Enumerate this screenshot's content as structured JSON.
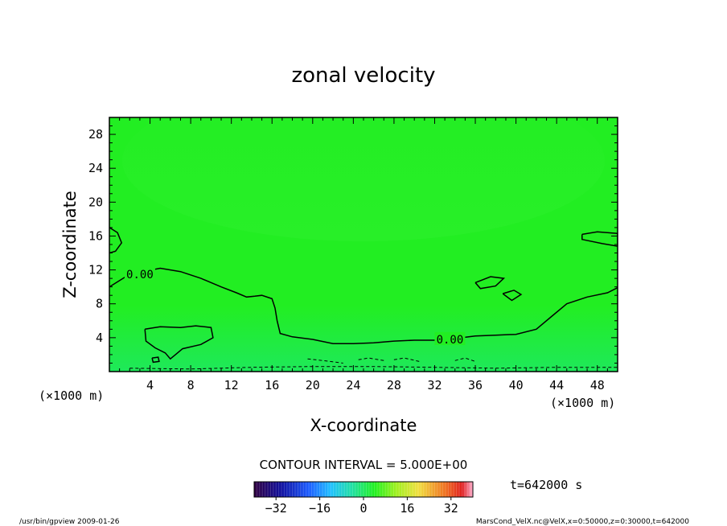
{
  "chart_data": {
    "type": "heatmap",
    "title": "zonal velocity",
    "xlabel": "X-coordinate",
    "ylabel": "Z-coordinate",
    "xunit_left": "(×1000 m)",
    "xunit_right": "(×1000 m)",
    "xlim": [
      0,
      50
    ],
    "ylim": [
      0,
      30
    ],
    "x_ticks": [
      4,
      8,
      12,
      16,
      20,
      24,
      28,
      32,
      36,
      40,
      44,
      48
    ],
    "y_ticks": [
      4,
      8,
      12,
      16,
      20,
      24,
      28
    ],
    "contour_interval": "CONTOUR INTERVAL = 5.000E+00",
    "contour_labels": [
      {
        "text": "0.00",
        "x": 3.0,
        "y": 11.5
      },
      {
        "text": "0.00",
        "x": 33.5,
        "y": 3.8
      }
    ],
    "zero_contour_main": [
      [
        0,
        10.0
      ],
      [
        2,
        11.5
      ],
      [
        5,
        12.2
      ],
      [
        7,
        11.8
      ],
      [
        9,
        11.0
      ],
      [
        11,
        10.0
      ],
      [
        12.5,
        9.3
      ],
      [
        13.5,
        8.8
      ],
      [
        14.3,
        8.9
      ],
      [
        15,
        9.0
      ],
      [
        16,
        8.6
      ],
      [
        16.3,
        7.5
      ],
      [
        16.5,
        6.0
      ],
      [
        16.8,
        4.5
      ],
      [
        18,
        4.1
      ],
      [
        20,
        3.8
      ],
      [
        22,
        3.3
      ],
      [
        24,
        3.3
      ],
      [
        26,
        3.4
      ],
      [
        28,
        3.6
      ],
      [
        30,
        3.7
      ],
      [
        32,
        3.7
      ],
      [
        34,
        3.9
      ],
      [
        36,
        4.2
      ],
      [
        38,
        4.3
      ],
      [
        40,
        4.4
      ],
      [
        42,
        5.0
      ],
      [
        43.5,
        6.5
      ],
      [
        45,
        8.0
      ],
      [
        47,
        8.8
      ],
      [
        49,
        9.3
      ],
      [
        50,
        9.9
      ]
    ],
    "zero_contours_closed": [
      [
        [
          3.5,
          5.0
        ],
        [
          5,
          5.3
        ],
        [
          7,
          5.2
        ],
        [
          8.5,
          5.4
        ],
        [
          10,
          5.2
        ],
        [
          10.2,
          4.0
        ],
        [
          9,
          3.2
        ],
        [
          7.2,
          2.7
        ],
        [
          6.5,
          2.0
        ],
        [
          6.0,
          1.5
        ],
        [
          5.5,
          2.2
        ],
        [
          4.5,
          2.8
        ],
        [
          3.6,
          3.6
        ],
        [
          3.5,
          5.0
        ]
      ],
      [
        [
          36.0,
          10.5
        ],
        [
          37.5,
          11.2
        ],
        [
          38.8,
          11.0
        ],
        [
          38.0,
          10.1
        ],
        [
          36.5,
          9.8
        ],
        [
          36.0,
          10.5
        ]
      ],
      [
        [
          38.7,
          9.2
        ],
        [
          39.8,
          9.6
        ],
        [
          40.5,
          9.1
        ],
        [
          39.6,
          8.4
        ],
        [
          38.7,
          9.2
        ]
      ],
      [
        [
          46.5,
          16.2
        ],
        [
          48,
          16.5
        ],
        [
          50,
          16.3
        ],
        [
          50,
          14.8
        ],
        [
          48.5,
          15.1
        ],
        [
          46.5,
          15.6
        ],
        [
          46.5,
          16.2
        ]
      ],
      [
        [
          0,
          17.0
        ],
        [
          0.8,
          16.4
        ],
        [
          1.2,
          15.2
        ],
        [
          0.6,
          14.2
        ],
        [
          0,
          14.0
        ]
      ],
      [
        [
          4.2,
          1.6
        ],
        [
          4.8,
          1.7
        ],
        [
          4.9,
          1.2
        ],
        [
          4.3,
          1.1
        ],
        [
          4.2,
          1.6
        ]
      ]
    ],
    "negative_dashed": [
      [
        [
          2,
          0.4
        ],
        [
          8,
          0.3
        ],
        [
          14,
          0.5
        ],
        [
          20,
          0.6
        ],
        [
          26,
          0.6
        ],
        [
          32,
          0.5
        ],
        [
          38,
          0.4
        ],
        [
          44,
          0.5
        ],
        [
          50,
          0.5
        ]
      ],
      [
        [
          19.5,
          1.5
        ],
        [
          21,
          1.3
        ],
        [
          23,
          1.0
        ]
      ],
      [
        [
          24.5,
          1.4
        ],
        [
          25.5,
          1.6
        ],
        [
          27,
          1.3
        ]
      ],
      [
        [
          28,
          1.4
        ],
        [
          29,
          1.6
        ],
        [
          30.5,
          1.2
        ]
      ],
      [
        [
          34,
          1.3
        ],
        [
          35,
          1.6
        ],
        [
          36,
          1.2
        ]
      ]
    ],
    "colorbar": {
      "ticks": [
        -32,
        -16,
        0,
        16,
        32
      ],
      "range": [
        -40,
        40
      ],
      "stops": [
        {
          "v": -40,
          "color": "#300040"
        },
        {
          "v": -30,
          "color": "#1010a0"
        },
        {
          "v": -20,
          "color": "#1c5cff"
        },
        {
          "v": -12,
          "color": "#20c0ff"
        },
        {
          "v": -4,
          "color": "#20e0a0"
        },
        {
          "v": 4,
          "color": "#20f020"
        },
        {
          "v": 12,
          "color": "#a0f020"
        },
        {
          "v": 20,
          "color": "#f0e040"
        },
        {
          "v": 30,
          "color": "#f07020"
        },
        {
          "v": 36,
          "color": "#e02020"
        },
        {
          "v": 40,
          "color": "#ffb0d0"
        }
      ]
    },
    "fill_colors": {
      "base": "#22ee22",
      "upper": "#2af02a",
      "low": "#1ce86a",
      "lower_band": "#2cec5a"
    },
    "time_label": "t=642000 s",
    "footer_left": "/usr/bin/gpview  2009-01-26",
    "footer_right": "MarsCond_VelX.nc@VelX,x=0:50000,z=0:30000,t=642000"
  }
}
